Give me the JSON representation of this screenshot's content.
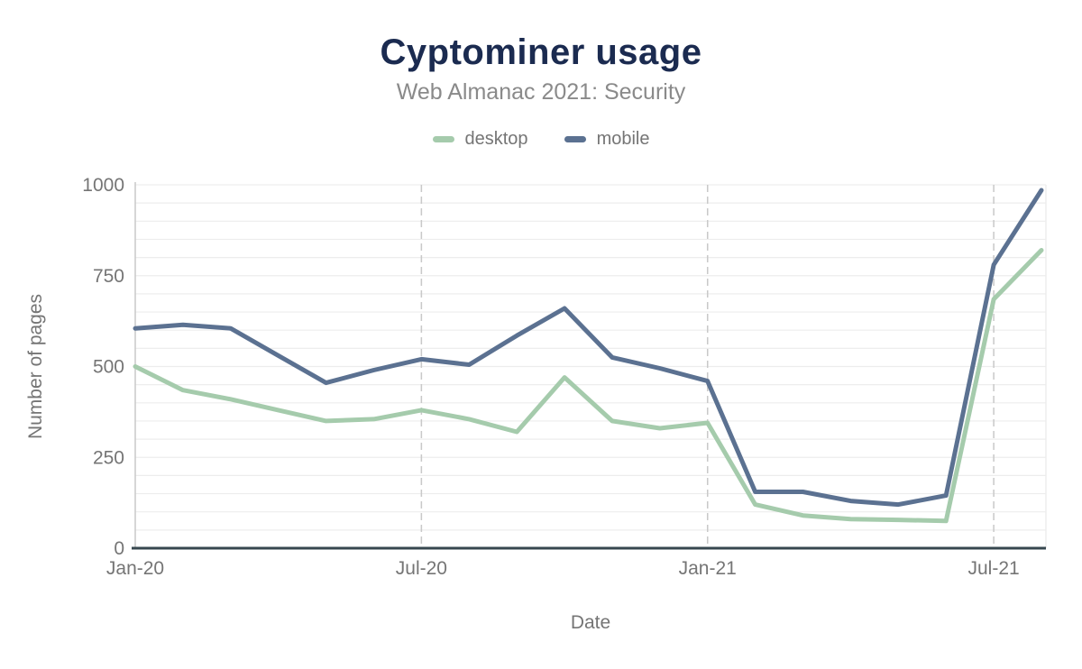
{
  "header": {
    "title": "Cyptominer usage",
    "subtitle": "Web Almanac 2021: Security"
  },
  "colors": {
    "title": "#1b2b50",
    "subtitle": "#8a8a8a",
    "tick_label": "#757575",
    "grid_minor": "#ededed",
    "grid_dashed": "#c9c9c9",
    "axis_line": "#c9c9c9",
    "baseline": "#37474f",
    "desktop": "#a5cbac",
    "mobile": "#5b7191"
  },
  "chart_data": {
    "type": "line",
    "title": "Cyptominer usage",
    "subtitle": "Web Almanac 2021: Security",
    "xlabel": "Date",
    "ylabel": "Number of pages",
    "x": [
      "Jan-20",
      "Feb-20",
      "Mar-20",
      "Apr-20",
      "May-20",
      "Jun-20",
      "Jul-20",
      "Aug-20",
      "Sep-20",
      "Oct-20",
      "Nov-20",
      "Dec-20",
      "Jan-21",
      "Feb-21",
      "Mar-21",
      "Apr-21",
      "May-21",
      "Jun-21",
      "Jul-21",
      "Aug-21"
    ],
    "x_tick_labels": [
      "Jan-20",
      "Jul-20",
      "Jan-21",
      "Jul-21"
    ],
    "x_tick_indices": [
      0,
      6,
      12,
      18
    ],
    "ylim": [
      0,
      1000
    ],
    "y_ticks": [
      0,
      250,
      500,
      750,
      1000
    ],
    "minor_grid_step": 50,
    "grid": true,
    "legend_position": "top",
    "series": [
      {
        "name": "desktop",
        "color": "#a5cbac",
        "values": [
          500,
          435,
          410,
          380,
          350,
          355,
          380,
          355,
          320,
          470,
          350,
          330,
          345,
          120,
          90,
          80,
          78,
          75,
          685,
          820
        ]
      },
      {
        "name": "mobile",
        "color": "#5b7191",
        "values": [
          605,
          615,
          605,
          530,
          455,
          490,
          520,
          505,
          585,
          660,
          525,
          495,
          460,
          155,
          155,
          130,
          120,
          145,
          780,
          985
        ]
      }
    ]
  }
}
